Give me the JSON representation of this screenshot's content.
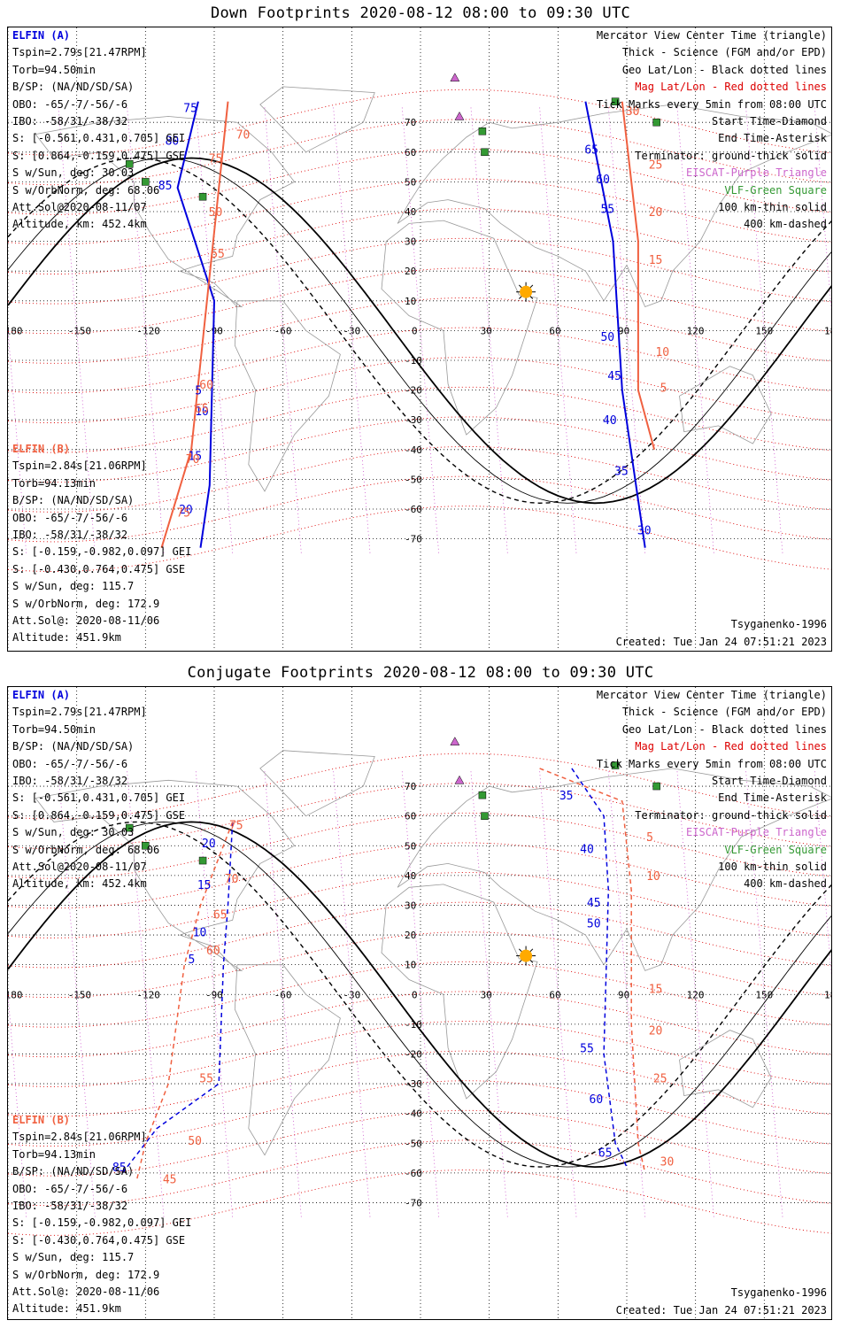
{
  "colors": {
    "elfin_a": "#0000dd",
    "elfin_b": "#f06040",
    "terminator": "#000000",
    "geo_grid": "#000000",
    "mag_grid": "#dd0000",
    "eiscat": "#cc66cc",
    "vlf": "#339933",
    "sun": "#ffaa00"
  },
  "panels": [
    {
      "title": "Down Footprints 2020-08-12 08:00 to 09:30 UTC",
      "elfin_a": {
        "label": "ELFIN (A)",
        "lines": [
          "Tspin=2.79s[21.47RPM]",
          "Torb=94.50min",
          "B/SP: (NA/ND/SD/SA)",
          "OBO: -65/-7/-56/-6",
          "IBO: -58/31/-38/32",
          "S: [-0.561,0.431,0.705] GEI",
          "S: [0.864,-0.159,0.475] GSE",
          "S w/Sun, deg: 30.03",
          "S w/OrbNorm, deg: 68.06",
          "Att.Sol@2020-08-11/07",
          "Altitude, km: 452.4km"
        ]
      },
      "elfin_b": {
        "label": "ELFIN (B)",
        "lines": [
          "Tspin=2.84s[21.06RPM]",
          "Torb=94.13min",
          "B/SP: (NA/ND/SD/SA)",
          "OBO: -65/-7/-56/-6",
          "IBO: -58/31/-38/32",
          "S: [-0.159,-0.982,0.097] GEI",
          "S: [-0.430,0.764,0.475] GSE",
          "S w/Sun, deg: 115.7",
          "S w/OrbNorm, deg: 172.9",
          "Att.Sol@: 2020-08-11/06",
          "Altitude: 451.9km"
        ]
      },
      "legend": [
        "Mercator View Center Time (triangle)",
        "Thick - Science (FGM and/or EPD)",
        "Geo Lat/Lon - Black dotted lines",
        "Mag Lat/Lon - Red dotted lines",
        "Tick Marks every 5min from 08:00 UTC",
        "Start Time-Diamond",
        "End Time-Asterisk",
        "Terminator: ground-thick solid",
        "EISCAT-Purple Triangle",
        "VLF-Green Square",
        "100 km-thin solid",
        "400 km-dashed"
      ],
      "model": "Tsyganenko-1996",
      "created": "Created: Tue Jan 24 07:51:21 2023",
      "track_a": [
        [
          -97,
          77
        ],
        [
          -106,
          48
        ],
        [
          -90,
          10
        ],
        [
          -92,
          -52
        ],
        [
          -96,
          -73
        ]
      ],
      "track_b": [
        [
          -84,
          77
        ],
        [
          -100,
          -40
        ],
        [
          -113,
          -73
        ]
      ],
      "track_a2": [
        [
          72,
          77
        ],
        [
          84,
          30
        ],
        [
          88,
          -20
        ],
        [
          98,
          -73
        ]
      ],
      "track_b2": [
        [
          88,
          77
        ],
        [
          95,
          30
        ],
        [
          95,
          -20
        ],
        [
          102,
          -40
        ]
      ],
      "tick_labels_a": [
        [
          "75",
          -98,
          75
        ],
        [
          "80",
          -106,
          64
        ],
        [
          "85",
          -109,
          49
        ],
        [
          "5",
          -93,
          -20
        ],
        [
          "10",
          -93,
          -27
        ],
        [
          "15",
          -96,
          -42
        ],
        [
          "20",
          -100,
          -60
        ],
        [
          "65",
          77,
          61
        ],
        [
          "60",
          82,
          51
        ],
        [
          "55",
          84,
          41
        ],
        [
          "50",
          84,
          -2
        ],
        [
          "45",
          87,
          -15
        ],
        [
          "40",
          85,
          -30
        ],
        [
          "35",
          90,
          -47
        ],
        [
          "30",
          100,
          -67
        ]
      ],
      "tick_labels_b": [
        [
          "70",
          -82,
          66
        ],
        [
          "75",
          -94,
          58
        ],
        [
          "50",
          -94,
          40
        ],
        [
          "55",
          -93,
          26
        ],
        [
          "60",
          -98,
          -18
        ],
        [
          "65",
          -100,
          -26
        ],
        [
          "70",
          -104,
          -43
        ],
        [
          "75",
          -108,
          -61
        ],
        [
          "30",
          88,
          74
        ],
        [
          "25",
          98,
          56
        ],
        [
          "20",
          98,
          40
        ],
        [
          "15",
          98,
          24
        ],
        [
          "10",
          101,
          -7
        ],
        [
          "5",
          103,
          -19
        ]
      ]
    },
    {
      "title": "Conjugate Footprints 2020-08-12 08:00 to 09:30 UTC",
      "elfin_a": {
        "label": "ELFIN (A)",
        "lines": [
          "Tspin=2.79s[21.47RPM]",
          "Torb=94.50min",
          "B/SP: (NA/ND/SD/SA)",
          "OBO: -65/-7/-56/-6",
          "IBO: -58/31/-38/32",
          "S: [-0.561,0.431,0.705] GEI",
          "S: [0.864,-0.159,0.475] GSE",
          "S w/Sun, deg: 30.03",
          "S w/OrbNorm, deg: 68.06",
          "Att.Sol@2020-08-11/07",
          "Altitude, km: 452.4km"
        ]
      },
      "elfin_b": {
        "label": "ELFIN (B)",
        "lines": [
          "Tspin=2.84s[21.06RPM]",
          "Torb=94.13min",
          "B/SP: (NA/ND/SD/SA)",
          "OBO: -65/-7/-56/-6",
          "IBO: -58/31/-38/32",
          "S: [-0.159,-0.982,0.097] GEI",
          "S: [-0.430,0.764,0.475] GSE",
          "S w/Sun, deg: 115.7",
          "S w/OrbNorm, deg: 172.9",
          "Att.Sol@: 2020-08-11/06",
          "Altitude: 451.9km"
        ]
      },
      "legend": [
        "Mercator View Center Time (triangle)",
        "Thick - Science (FGM and/or EPD)",
        "Geo Lat/Lon - Black dotted lines",
        "Mag Lat/Lon - Red dotted lines",
        "Tick Marks every 5min from 08:00 UTC",
        "Start Time-Diamond",
        "End Time-Asterisk",
        "Terminator: ground-thick solid",
        "EISCAT-Purple Triangle",
        "VLF-Green Square",
        "100 km-thin solid",
        "400 km-dashed"
      ],
      "model": "Tsyganenko-1996",
      "created": "Created: Tue Jan 24 07:51:21 2023",
      "track_a": [
        [
          -82,
          58
        ],
        [
          -84,
          30
        ],
        [
          -86,
          10
        ],
        [
          -88,
          -30
        ],
        [
          -115,
          -45
        ],
        [
          -130,
          -60
        ]
      ],
      "track_b": [
        [
          -82,
          58
        ],
        [
          -96,
          30
        ],
        [
          -103,
          10
        ],
        [
          -110,
          -30
        ],
        [
          -120,
          -50
        ],
        [
          -124,
          -63
        ]
      ],
      "track_a2": [
        [
          66,
          76
        ],
        [
          80,
          60
        ],
        [
          82,
          35
        ],
        [
          80,
          -20
        ],
        [
          85,
          -50
        ],
        [
          90,
          -58
        ]
      ],
      "track_b2": [
        [
          52,
          76
        ],
        [
          88,
          65
        ],
        [
          92,
          35
        ],
        [
          92,
          -10
        ],
        [
          95,
          -50
        ],
        [
          98,
          -60
        ]
      ],
      "tick_labels_a": [
        [
          "20",
          -90,
          51
        ],
        [
          "15",
          -92,
          37
        ],
        [
          "10",
          -94,
          21
        ],
        [
          "5",
          -96,
          12
        ],
        [
          "35",
          66,
          67
        ],
        [
          "40",
          75,
          49
        ],
        [
          "45",
          78,
          31
        ],
        [
          "50",
          78,
          24
        ],
        [
          "55",
          75,
          -18
        ],
        [
          "60",
          79,
          -35
        ],
        [
          "65",
          83,
          -53
        ],
        [
          "85",
          -129,
          -58
        ]
      ],
      "tick_labels_b": [
        [
          "75",
          -85,
          57
        ],
        [
          "70",
          -87,
          39
        ],
        [
          "65",
          -92,
          27
        ],
        [
          "60",
          -95,
          15
        ],
        [
          "55",
          -98,
          -28
        ],
        [
          "50",
          -103,
          -49
        ],
        [
          "45",
          -114,
          -62
        ],
        [
          "5",
          97,
          53
        ],
        [
          "10",
          97,
          40
        ],
        [
          "15",
          98,
          2
        ],
        [
          "20",
          98,
          -12
        ],
        [
          "25",
          100,
          -28
        ],
        [
          "30",
          103,
          -56
        ]
      ]
    }
  ],
  "axis": {
    "lon_ticks": [
      "-180",
      "-150",
      "-120",
      "-90",
      "-60",
      "-30",
      "0",
      "30",
      "60",
      "90",
      "120",
      "150",
      "180"
    ],
    "lat_ticks": [
      "70",
      "60",
      "50",
      "40",
      "30",
      "20",
      "10",
      "0",
      "-10",
      "-20",
      "-30",
      "-40",
      "-50",
      "-60",
      "-70"
    ]
  }
}
